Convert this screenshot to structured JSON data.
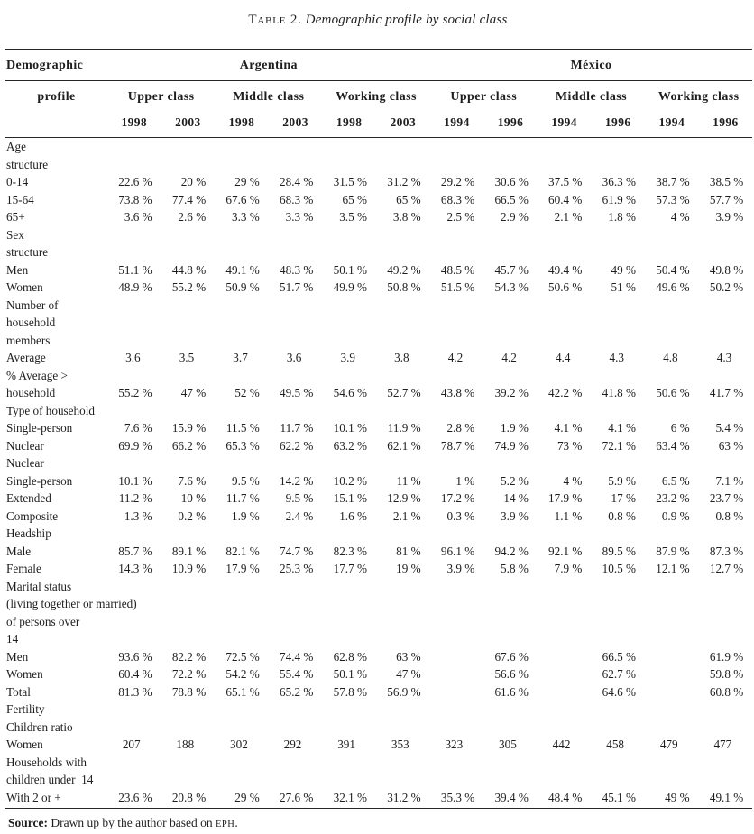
{
  "title": {
    "label": "Table 2.",
    "text": "Demographic profile by social class"
  },
  "table": {
    "corner": {
      "line1": "Demographic",
      "line2": "profile"
    },
    "country_groups": [
      {
        "label": "Argentina",
        "span": 6
      },
      {
        "label": "México",
        "span": 6
      }
    ],
    "class_groups": [
      {
        "label": "Upper class"
      },
      {
        "label": "Middle class"
      },
      {
        "label": "Working class"
      },
      {
        "label": "Upper class"
      },
      {
        "label": "Middle class"
      },
      {
        "label": "Working class"
      }
    ],
    "years": [
      "1998",
      "2003",
      "1998",
      "2003",
      "1998",
      "2003",
      "1994",
      "1996",
      "1994",
      "1996",
      "1994",
      "1996"
    ],
    "rows": [
      {
        "label": "Age",
        "values": []
      },
      {
        "label": "structure",
        "values": []
      },
      {
        "label": "0-14",
        "values": [
          "22.6 %",
          "20 %",
          "29 %",
          "28.4 %",
          "31.5 %",
          "31.2 %",
          "29.2 %",
          "30.6 %",
          "37.5 %",
          "36.3 %",
          "38.7 %",
          "38.5 %"
        ]
      },
      {
        "label": "15-64",
        "values": [
          "73.8 %",
          "77.4 %",
          "67.6 %",
          "68.3 %",
          "65 %",
          "65 %",
          "68.3 %",
          "66.5 %",
          "60.4 %",
          "61.9 %",
          "57.3 %",
          "57.7 %"
        ]
      },
      {
        "label": "65+",
        "values": [
          "3.6 %",
          "2.6 %",
          "3.3 %",
          "3.3 %",
          "3.5 %",
          "3.8 %",
          "2.5 %",
          "2.9 %",
          "2.1 %",
          "1.8 %",
          "4 %",
          "3.9 %"
        ]
      },
      {
        "label": "Sex",
        "values": []
      },
      {
        "label": "structure",
        "values": []
      },
      {
        "label": "Men",
        "values": [
          "51.1 %",
          "44.8 %",
          "49.1 %",
          "48.3 %",
          "50.1 %",
          "49.2 %",
          "48.5 %",
          "45.7 %",
          "49.4 %",
          "49 %",
          "50.4 %",
          "49.8 %"
        ]
      },
      {
        "label": "Women",
        "values": [
          "48.9 %",
          "55.2 %",
          "50.9 %",
          "51.7 %",
          "49.9 %",
          "50.8 %",
          "51.5 %",
          "54.3 %",
          "50.6 %",
          "51 %",
          "49.6 %",
          "50.2 %"
        ]
      },
      {
        "label": "Number of",
        "values": []
      },
      {
        "label": "household",
        "values": []
      },
      {
        "label": "members",
        "values": []
      },
      {
        "label": "Average",
        "values": [
          "3.6",
          "3.5",
          "3.7",
          "3.6",
          "3.9",
          "3.8",
          "4.2",
          "4.2",
          "4.4",
          "4.3",
          "4.8",
          "4.3"
        ]
      },
      {
        "label": "% Average >",
        "values": []
      },
      {
        "label": "household",
        "values": [
          "55.2 %",
          "47 %",
          "52 %",
          "49.5 %",
          "54.6 %",
          "52.7 %",
          "43.8 %",
          "39.2 %",
          "42.2 %",
          "41.8 %",
          "50.6 %",
          "41.7 %"
        ]
      },
      {
        "label": "Type of household",
        "values": []
      },
      {
        "label": "Single-person",
        "values": [
          "7.6 %",
          "15.9 %",
          "11.5 %",
          "11.7 %",
          "10.1 %",
          "11.9 %",
          "2.8 %",
          "1.9 %",
          "4.1 %",
          "4.1 %",
          "6 %",
          "5.4 %"
        ]
      },
      {
        "label": "Nuclear",
        "values": [
          "69.9 %",
          "66.2 %",
          "65.3 %",
          "62.2 %",
          "63.2 %",
          "62.1 %",
          "78.7 %",
          "74.9 %",
          "73 %",
          "72.1 %",
          "63.4 %",
          "63 %"
        ]
      },
      {
        "label": "Nuclear",
        "values": []
      },
      {
        "label": "Single-person",
        "values": [
          "10.1 %",
          "7.6 %",
          "9.5 %",
          "14.2 %",
          "10.2 %",
          "11 %",
          "1 %",
          "5.2 %",
          "4 %",
          "5.9 %",
          "6.5 %",
          "7.1 %"
        ]
      },
      {
        "label": "Extended",
        "values": [
          "11.2 %",
          "10 %",
          "11.7 %",
          "9.5 %",
          "15.1 %",
          "12.9 %",
          "17.2 %",
          "14 %",
          "17.9 %",
          "17 %",
          "23.2 %",
          "23.7 %"
        ]
      },
      {
        "label": "Composite",
        "values": [
          "1.3 %",
          "0.2 %",
          "1.9 %",
          "2.4 %",
          "1.6 %",
          "2.1 %",
          "0.3 %",
          "3.9 %",
          "1.1 %",
          "0.8 %",
          "0.9 %",
          "0.8 %"
        ]
      },
      {
        "label": "Headship",
        "values": []
      },
      {
        "label": "Male",
        "values": [
          "85.7 %",
          "89.1 %",
          "82.1 %",
          "74.7 %",
          "82.3 %",
          "81 %",
          "96.1 %",
          "94.2 %",
          "92.1 %",
          "89.5 %",
          "87.9 %",
          "87.3 %"
        ]
      },
      {
        "label": "Female",
        "values": [
          "14.3 %",
          "10.9 %",
          "17.9 %",
          "25.3 %",
          "17.7 %",
          "19 %",
          "3.9 %",
          "5.8 %",
          "7.9 %",
          "10.5 %",
          "12.1 %",
          "12.7 %"
        ]
      },
      {
        "label": "Marital status",
        "values": []
      },
      {
        "label": "(living together or married)",
        "values": []
      },
      {
        "label": "of persons over",
        "values": []
      },
      {
        "label": "14",
        "values": []
      },
      {
        "label": "Men",
        "values": [
          "93.6 %",
          "82.2 %",
          "72.5 %",
          "74.4 %",
          "62.8 %",
          "63 %",
          "",
          "67.6 %",
          "",
          "66.5 %",
          "",
          "61.9 %"
        ]
      },
      {
        "label": "Women",
        "values": [
          "60.4 %",
          "72.2 %",
          "54.2 %",
          "55.4 %",
          "50.1 %",
          "47 %",
          "",
          "56.6 %",
          "",
          "62.7 %",
          "",
          "59.8 %"
        ]
      },
      {
        "label": "Total",
        "values": [
          "81.3 %",
          "78.8 %",
          "65.1 %",
          "65.2 %",
          "57.8 %",
          "56.9 %",
          "",
          "61.6 %",
          "",
          "64.6 %",
          "",
          "60.8 %"
        ]
      },
      {
        "label": "Fertility",
        "values": []
      },
      {
        "label": "Children ratio",
        "values": []
      },
      {
        "label": "Women",
        "values": [
          "207",
          "188",
          "302",
          "292",
          "391",
          "353",
          "323",
          "305",
          "442",
          "458",
          "479",
          "477"
        ]
      },
      {
        "label": "Households with",
        "values": []
      },
      {
        "label": "children under  14",
        "values": []
      },
      {
        "label": "With 2 or +",
        "values": [
          "23.6 %",
          "20.8 %",
          "29 %",
          "27.6 %",
          "32.1 %",
          "31.2 %",
          "35.3 %",
          "39.4 %",
          "48.4 %",
          "45.1 %",
          "49 %",
          "49.1 %"
        ]
      }
    ]
  },
  "footer": {
    "label": "Source:",
    "text": " Drawn up by the author based on ",
    "abbr": "EPH",
    "suffix": "."
  }
}
